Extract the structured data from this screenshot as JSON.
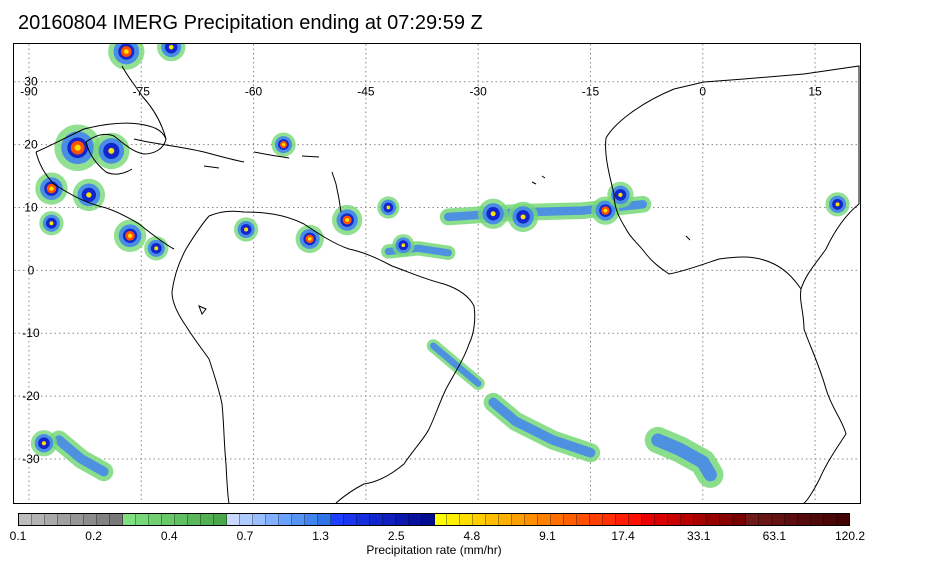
{
  "title": "20160804 IMERG Precipitation ending at 07:29:59 Z",
  "map": {
    "lon_range": [
      -92,
      21
    ],
    "lat_range": [
      36,
      -37
    ],
    "lon_ticks": [
      "-90",
      "-75",
      "-60",
      "-45",
      "-30",
      "-15",
      "0",
      "15"
    ],
    "lat_ticks": [
      "30",
      "20",
      "10",
      "0",
      "-10",
      "-20",
      "-30"
    ],
    "gridlines": "dotted",
    "precip_cells": [
      {
        "lon": -83.5,
        "lat": 19.5,
        "r": 2.3,
        "level": "heavy"
      },
      {
        "lon": -79,
        "lat": 19,
        "r": 1.8,
        "level": "moderate"
      },
      {
        "lon": -87,
        "lat": 13,
        "r": 1.6,
        "level": "heavy"
      },
      {
        "lon": -82,
        "lat": 12,
        "r": 1.6,
        "level": "moderate"
      },
      {
        "lon": -76.5,
        "lat": 5.5,
        "r": 1.6,
        "level": "heavy"
      },
      {
        "lon": -77,
        "lat": 34.8,
        "r": 1.8,
        "level": "heavy"
      },
      {
        "lon": -71,
        "lat": 35.5,
        "r": 1.4,
        "level": "moderate"
      },
      {
        "lon": -56,
        "lat": 20,
        "r": 1.2,
        "level": "heavy"
      },
      {
        "lon": -47.5,
        "lat": 8,
        "r": 1.5,
        "level": "heavy"
      },
      {
        "lon": -52.5,
        "lat": 5,
        "r": 1.4,
        "level": "heavy"
      },
      {
        "lon": -61,
        "lat": 6.5,
        "r": 1.2,
        "level": "moderate"
      },
      {
        "lon": -73,
        "lat": 3.5,
        "r": 1.2,
        "level": "moderate"
      },
      {
        "lon": -42,
        "lat": 10,
        "r": 1.1,
        "level": "moderate"
      },
      {
        "lon": -28,
        "lat": 9,
        "r": 1.5,
        "level": "moderate"
      },
      {
        "lon": -24,
        "lat": 8.5,
        "r": 1.5,
        "level": "moderate"
      },
      {
        "lon": -13,
        "lat": 9.5,
        "r": 1.4,
        "level": "heavy"
      },
      {
        "lon": -40,
        "lat": 4,
        "r": 1.1,
        "level": "moderate"
      },
      {
        "lon": -87,
        "lat": 7.5,
        "r": 1.2,
        "level": "moderate"
      },
      {
        "lon": -88,
        "lat": -27.5,
        "r": 1.3,
        "level": "moderate"
      },
      {
        "lon": -11,
        "lat": 12,
        "r": 1.3,
        "level": "moderate"
      },
      {
        "lon": 18,
        "lat": 10.5,
        "r": 1.2,
        "level": "moderate"
      }
    ],
    "precip_bands": [
      {
        "points": [
          [
            -6,
            -27
          ],
          [
            -3,
            -28.5
          ],
          [
            0,
            -30.5
          ],
          [
            1,
            -32.5
          ]
        ],
        "width": 2.2
      },
      {
        "points": [
          [
            -28,
            -21
          ],
          [
            -25,
            -24
          ],
          [
            -20,
            -27
          ],
          [
            -15,
            -29
          ]
        ],
        "width": 1.6
      },
      {
        "points": [
          [
            -36,
            -12
          ],
          [
            -33,
            -15
          ],
          [
            -30,
            -18
          ]
        ],
        "width": 1.1
      },
      {
        "points": [
          [
            -86,
            -27
          ],
          [
            -83,
            -30
          ],
          [
            -80,
            -32
          ]
        ],
        "width": 1.6
      },
      {
        "points": [
          [
            -42,
            3
          ],
          [
            -38,
            3.5
          ],
          [
            -34,
            2.8
          ]
        ],
        "width": 1.2
      },
      {
        "points": [
          [
            -34,
            8.5
          ],
          [
            -25,
            9.2
          ],
          [
            -16,
            9.5
          ],
          [
            -8,
            10.5
          ]
        ],
        "width": 1.4
      }
    ]
  },
  "colorbar": {
    "label": "Precipitation rate (mm/hr)",
    "tick_labels": [
      "0.1",
      "0.2",
      "0.4",
      "0.7",
      "1.3",
      "2.5",
      "4.8",
      "9.1",
      "17.4",
      "33.1",
      "63.1",
      "120.2"
    ],
    "colors": [
      "#bdbdbd",
      "#b3b3b3",
      "#a9a9a9",
      "#a0a0a0",
      "#969696",
      "#8c8c8c",
      "#828282",
      "#787878",
      "#7fe07f",
      "#77d877",
      "#70d070",
      "#68c868",
      "#61c061",
      "#59b859",
      "#52b052",
      "#4aa84a",
      "#c8d8ff",
      "#b0cbff",
      "#98beff",
      "#80b0ff",
      "#6aa2ff",
      "#5593f5",
      "#4284ee",
      "#2f74e6",
      "#1f3fff",
      "#1a36ee",
      "#162ede",
      "#1226ce",
      "#0e1fbe",
      "#0a18ae",
      "#06129e",
      "#030b8e",
      "#ffff00",
      "#ffef00",
      "#ffdf00",
      "#ffcf00",
      "#ffbf00",
      "#ffaf00",
      "#ff9f00",
      "#ff8f00",
      "#ff7f00",
      "#ff6f00",
      "#ff5f00",
      "#ff4f00",
      "#ff3f00",
      "#ff2f00",
      "#ff1f00",
      "#ff0f00",
      "#e80000",
      "#d80000",
      "#c80000",
      "#b80000",
      "#a80000",
      "#980000",
      "#880000",
      "#780000",
      "#6e1a1a",
      "#681616",
      "#621212",
      "#5c0e0e",
      "#560b0b",
      "#500808",
      "#4a0505",
      "#440202"
    ],
    "intensity_colors": {
      "light": "#77d877",
      "moderate": "#4284ee",
      "strong": "#1226ce",
      "heavy": "#ff4f00",
      "core": "#ffdf00"
    }
  }
}
